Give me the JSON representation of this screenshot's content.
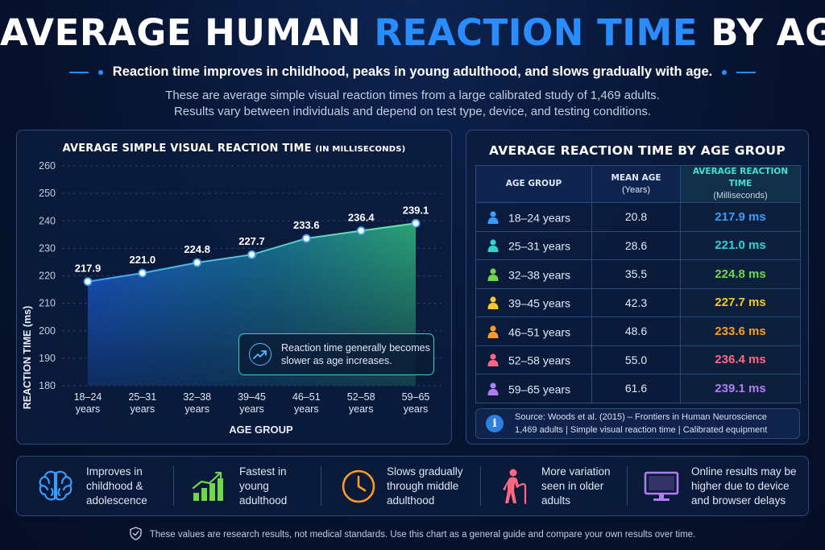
{
  "header": {
    "title_main": "AVERAGE HUMAN",
    "title_accent": "REACTION TIME",
    "title_end": "BY AGE",
    "subtitle": "Reaction time improves in childhood, peaks in young adulthood, and slows gradually with age.",
    "intro_line1": "These are average simple visual reaction times from a large calibrated study of 1,469 adults.",
    "intro_line2": "Results vary between individuals and depend on test type, device, and testing conditions."
  },
  "chart_panel": {
    "title": "AVERAGE SIMPLE VISUAL REACTION TIME",
    "title_small": "(IN MILLISECONDS)",
    "callout": "Reaction time generally becomes slower as age increases."
  },
  "chart_data": {
    "type": "area",
    "title": "AVERAGE SIMPLE VISUAL REACTION TIME (IN MILLISECONDS)",
    "xlabel": "AGE GROUP",
    "ylabel": "REACTION TIME (ms)",
    "ylim": [
      180,
      260
    ],
    "yticks": [
      180,
      190,
      200,
      210,
      220,
      230,
      240,
      250,
      260
    ],
    "grid": true,
    "categories": [
      [
        "18–24",
        "years"
      ],
      [
        "25–31",
        "years"
      ],
      [
        "32–38",
        "years"
      ],
      [
        "39–45",
        "years"
      ],
      [
        "46–51",
        "years"
      ],
      [
        "52–58",
        "years"
      ],
      [
        "59–65",
        "years"
      ]
    ],
    "values": [
      217.9,
      221.0,
      224.8,
      227.7,
      233.6,
      236.4,
      239.1
    ],
    "value_labels": [
      "217.9",
      "221.0",
      "224.8",
      "227.7",
      "233.6",
      "236.4",
      "239.1"
    ]
  },
  "table": {
    "title": "AVERAGE REACTION TIME BY AGE GROUP",
    "headers": {
      "age_group": "AGE GROUP",
      "mean_age": "MEAN AGE",
      "mean_age_unit": "(Years)",
      "reaction": "AVERAGE REACTION TIME",
      "reaction_unit": "(Milliseconds)"
    },
    "rows": [
      {
        "age": "18–24 years",
        "mean": "20.8",
        "rt": "217.9 ms",
        "color": "#3a9cff"
      },
      {
        "age": "25–31 years",
        "mean": "28.6",
        "rt": "221.0 ms",
        "color": "#2fd3d3"
      },
      {
        "age": "32–38 years",
        "mean": "35.5",
        "rt": "224.8 ms",
        "color": "#6fd84a"
      },
      {
        "age": "39–45 years",
        "mean": "42.3",
        "rt": "227.7 ms",
        "color": "#f5c929"
      },
      {
        "age": "46–51 years",
        "mean": "48.6",
        "rt": "233.6 ms",
        "color": "#ff9a22"
      },
      {
        "age": "52–58 years",
        "mean": "55.0",
        "rt": "236.4 ms",
        "color": "#ff6680"
      },
      {
        "age": "59–65 years",
        "mean": "61.6",
        "rt": "239.1 ms",
        "color": "#b07cf2"
      }
    ],
    "source_line1": "Source: Woods et al. (2015) – Frontiers in Human Neuroscience",
    "source_line2": "1,469 adults | Simple visual reaction time | Calibrated equipment"
  },
  "facts": [
    {
      "icon": "brain-icon",
      "color": "#3a9cff",
      "lines": [
        "Improves in",
        "childhood &",
        "adolescence"
      ]
    },
    {
      "icon": "growth-bars-icon",
      "color": "#6fd84a",
      "lines": [
        "Fastest in",
        "young",
        "adulthood"
      ]
    },
    {
      "icon": "clock-icon",
      "color": "#ff9a22",
      "lines": [
        "Slows gradually",
        "through middle",
        "adulthood"
      ]
    },
    {
      "icon": "elderly-person-icon",
      "color": "#ff6680",
      "lines": [
        "More variation",
        "seen in older",
        "adults"
      ]
    },
    {
      "icon": "monitor-icon",
      "color": "#b07cf2",
      "lines": [
        "Online results may be",
        "higher due to device",
        "and browser delays"
      ]
    }
  ],
  "footer": {
    "text": "These values are research results, not medical standards.  Use this chart as a general guide and compare your own results over time."
  },
  "colors": {
    "accent": "#2a8dff",
    "teal": "#37d1c2",
    "panel_border": "#2b4a7c"
  }
}
